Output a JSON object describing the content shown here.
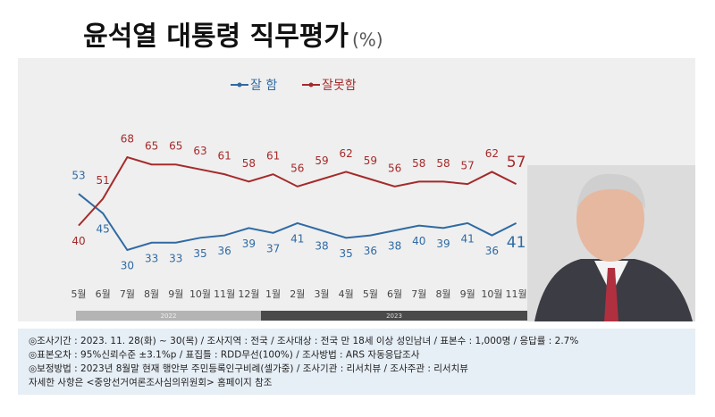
{
  "chart_data": {
    "type": "line",
    "title": "윤석열 대통령 직무평가",
    "unit": "(%)",
    "categories": [
      "5월",
      "6월",
      "7월",
      "8월",
      "9월",
      "10월",
      "11월",
      "12월",
      "1월",
      "2월",
      "3월",
      "4월",
      "5월",
      "6월",
      "7월",
      "8월",
      "9월",
      "10월",
      "11월"
    ],
    "series": [
      {
        "name": "잘 함",
        "color": "#2f6aa3",
        "values": [
          53,
          45,
          30,
          33,
          33,
          35,
          36,
          39,
          37,
          41,
          38,
          35,
          36,
          38,
          40,
          39,
          41,
          36,
          41
        ]
      },
      {
        "name": "잘못함",
        "color": "#a52a2a",
        "values": [
          40,
          51,
          68,
          65,
          65,
          63,
          61,
          58,
          61,
          56,
          59,
          62,
          59,
          56,
          58,
          58,
          57,
          62,
          57
        ]
      }
    ],
    "periods": [
      "2022",
      "2023"
    ],
    "notes": [
      "◎조사기간 : 2023. 11. 28(화) ~ 30(목) / 조사지역 : 전국 / 조사대상 : 전국 만 18세 이상 성인남녀 / 표본수 : 1,000명 / 응답률 : 2.7%",
      "◎표본오차 : 95%신뢰수준 ±3.1%p / 표집틀 : RDD무선(100%) / 조사방법 : ARS 자동응답조사",
      "◎보정방법 : 2023년 8월말 현재 행안부 주민등록인구비례(셀가중) / 조사기관 : 리서치뷰 / 조사주관 : 리서치뷰",
      "자세한 사항은 <중앙선거여론조사심의위원회> 홈페이지 참조"
    ]
  }
}
